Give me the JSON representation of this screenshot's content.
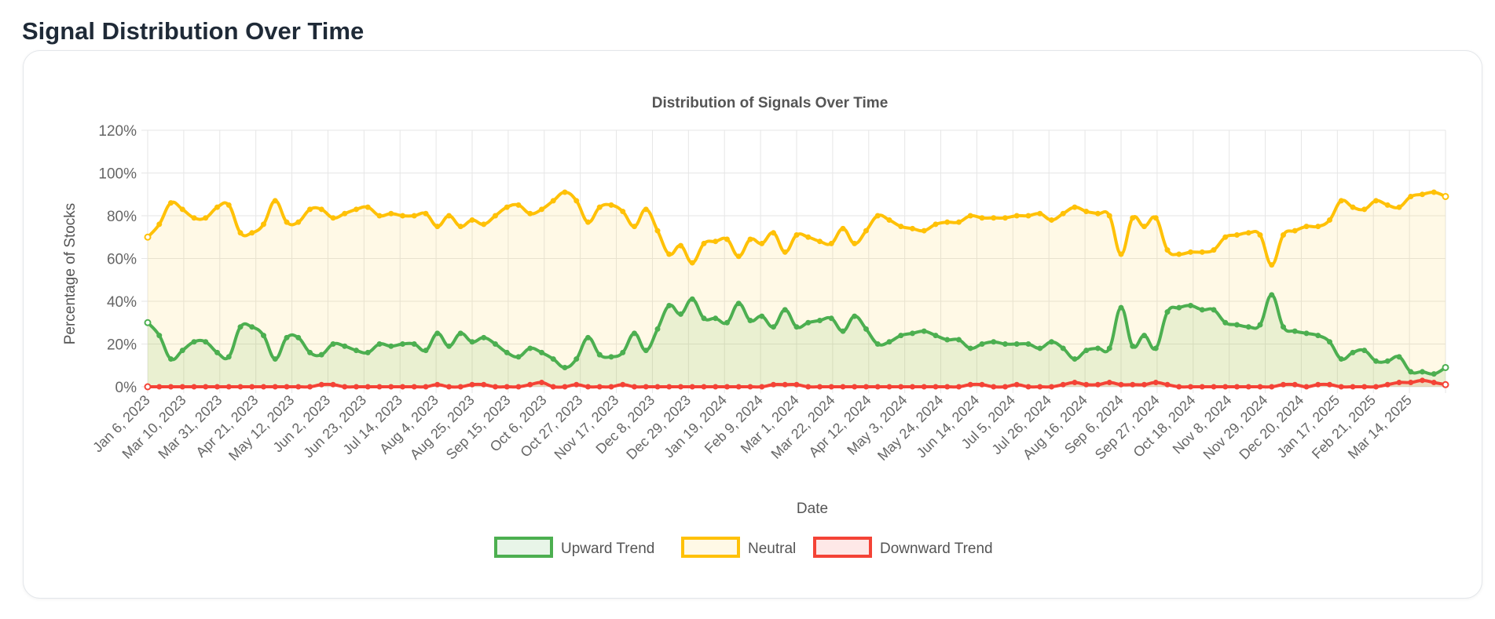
{
  "page": {
    "title": "Signal Distribution Over Time"
  },
  "colors": {
    "upward": "#4caf50",
    "upward_fill": "rgba(76,175,80,0.13)",
    "neutral": "#ffc107",
    "neutral_fill": "rgba(255,193,7,0.10)",
    "downward": "#f44336",
    "downward_fill": "rgba(244,67,54,0.12)",
    "grid": "#e6e6e6",
    "tick": "#666666"
  },
  "chart_data": {
    "type": "area",
    "title": "Distribution of Signals Over Time",
    "xlabel": "Date",
    "ylabel": "Percentage of Stocks",
    "ylim": [
      0,
      120
    ],
    "yticks": [
      "0%",
      "20%",
      "40%",
      "60%",
      "80%",
      "100%",
      "120%"
    ],
    "grid": true,
    "legend_position": "bottom",
    "x_tick_labels": [
      "Jan 6, 2023",
      "Mar 10, 2023",
      "Mar 31, 2023",
      "Apr 21, 2023",
      "May 12, 2023",
      "Jun 2, 2023",
      "Jun 23, 2023",
      "Jul 14, 2023",
      "Aug 4, 2023",
      "Aug 25, 2023",
      "Sep 15, 2023",
      "Oct 6, 2023",
      "Oct 27, 2023",
      "Nov 17, 2023",
      "Dec 8, 2023",
      "Dec 29, 2023",
      "Jan 19, 2024",
      "Feb 9, 2024",
      "Mar 1, 2024",
      "Mar 22, 2024",
      "Apr 12, 2024",
      "May 3, 2024",
      "May 24, 2024",
      "Jun 14, 2024",
      "Jul 5, 2024",
      "Jul 26, 2024",
      "Aug 16, 2024",
      "Sep 6, 2024",
      "Sep 27, 2024",
      "Oct 18, 2024",
      "Nov 8, 2024",
      "Nov 29, 2024",
      "Dec 20, 2024",
      "Jan 17, 2025",
      "Feb 21, 2025",
      "Mar 14, 2025"
    ],
    "series": [
      {
        "name": "Upward Trend",
        "values": [
          30,
          24,
          13,
          17,
          21,
          21,
          16,
          14,
          28,
          28,
          24,
          13,
          23,
          23,
          16,
          15,
          20,
          19,
          17,
          16,
          20,
          19,
          20,
          20,
          17,
          25,
          19,
          25,
          21,
          23,
          20,
          16,
          14,
          18,
          16,
          13,
          9,
          13,
          23,
          15,
          14,
          16,
          25,
          17,
          27,
          38,
          34,
          41,
          32,
          32,
          30,
          39,
          31,
          33,
          28,
          36,
          28,
          30,
          31,
          32,
          26,
          33,
          27,
          20,
          21,
          24,
          25,
          26,
          24,
          22,
          22,
          18,
          20,
          21,
          20,
          20,
          20,
          18,
          21,
          18,
          13,
          17,
          18,
          18,
          37,
          19,
          24,
          18,
          35,
          37,
          38,
          36,
          36,
          30,
          29,
          28,
          29,
          43,
          28,
          26,
          25,
          24,
          21,
          13,
          16,
          17,
          12,
          12,
          14,
          7,
          7,
          6,
          9
        ]
      },
      {
        "name": "Neutral",
        "values": [
          70,
          76,
          86,
          83,
          79,
          79,
          84,
          85,
          72,
          72,
          76,
          87,
          77,
          77,
          83,
          83,
          79,
          81,
          83,
          84,
          80,
          81,
          80,
          80,
          81,
          75,
          80,
          75,
          78,
          76,
          80,
          84,
          85,
          81,
          83,
          87,
          91,
          87,
          77,
          84,
          85,
          82,
          75,
          83,
          73,
          62,
          66,
          58,
          67,
          68,
          69,
          61,
          69,
          67,
          72,
          63,
          71,
          70,
          68,
          67,
          74,
          67,
          73,
          80,
          78,
          75,
          74,
          73,
          76,
          77,
          77,
          80,
          79,
          79,
          79,
          80,
          80,
          81,
          78,
          81,
          84,
          82,
          81,
          80,
          62,
          79,
          75,
          79,
          64,
          62,
          63,
          63,
          64,
          70,
          71,
          72,
          71,
          57,
          71,
          73,
          75,
          75,
          78,
          87,
          84,
          83,
          87,
          85,
          84,
          89,
          90,
          91,
          89
        ]
      },
      {
        "name": "Downward Trend",
        "values": [
          0,
          0,
          0,
          0,
          0,
          0,
          0,
          0,
          0,
          0,
          0,
          0,
          0,
          0,
          0,
          1,
          1,
          0,
          0,
          0,
          0,
          0,
          0,
          0,
          0,
          1,
          0,
          0,
          1,
          1,
          0,
          0,
          0,
          1,
          2,
          0,
          0,
          1,
          0,
          0,
          0,
          1,
          0,
          0,
          0,
          0,
          0,
          0,
          0,
          0,
          0,
          0,
          0,
          0,
          1,
          1,
          1,
          0,
          0,
          0,
          0,
          0,
          0,
          0,
          0,
          0,
          0,
          0,
          0,
          0,
          0,
          1,
          1,
          0,
          0,
          1,
          0,
          0,
          0,
          1,
          2,
          1,
          1,
          2,
          1,
          1,
          1,
          2,
          1,
          0,
          0,
          0,
          0,
          0,
          0,
          0,
          0,
          0,
          1,
          1,
          0,
          1,
          1,
          0,
          0,
          0,
          0,
          1,
          2,
          2,
          3,
          2,
          1
        ]
      }
    ]
  }
}
